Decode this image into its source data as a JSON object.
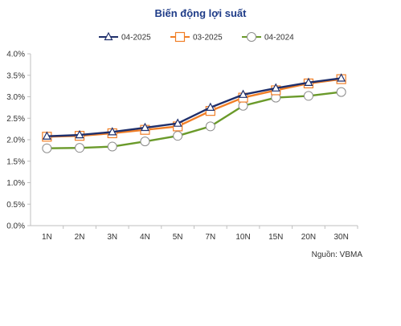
{
  "chart_data": {
    "type": "line",
    "title": "Biến động lợi suất",
    "categories": [
      "1N",
      "2N",
      "3N",
      "4N",
      "5N",
      "7N",
      "10N",
      "15N",
      "20N",
      "30N"
    ],
    "y_ticks": [
      "0.0%",
      "0.5%",
      "1.0%",
      "1.5%",
      "2.0%",
      "2.5%",
      "3.0%",
      "3.5%",
      "4.0%"
    ],
    "ylim": [
      0,
      4
    ],
    "grid": false,
    "legend_position": "top",
    "series": [
      {
        "name": "04-2025",
        "color": "#1f2f6b",
        "marker": "triangle",
        "values": [
          2.08,
          2.11,
          2.18,
          2.28,
          2.38,
          2.75,
          3.05,
          3.2,
          3.33,
          3.43
        ]
      },
      {
        "name": "03-2025",
        "color": "#f07e26",
        "marker": "square",
        "values": [
          2.07,
          2.09,
          2.15,
          2.23,
          2.31,
          2.67,
          2.98,
          3.15,
          3.31,
          3.41
        ]
      },
      {
        "name": "04-2024",
        "color": "#6a9a2a",
        "marker": "circle",
        "values": [
          1.8,
          1.81,
          1.84,
          1.96,
          2.09,
          2.31,
          2.79,
          2.98,
          3.02,
          3.11
        ]
      }
    ]
  },
  "source": "Nguồn: VBMA"
}
